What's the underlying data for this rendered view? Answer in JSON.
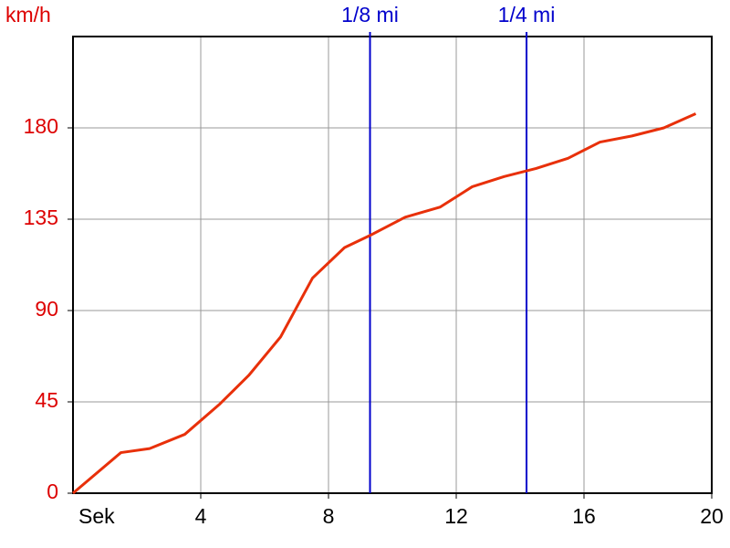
{
  "chart_data": {
    "type": "line",
    "y_label": "km/h",
    "x_label": "Sek",
    "x": [
      0,
      1.5,
      2.4,
      3.5,
      4.6,
      5.5,
      6.5,
      7.5,
      8.5,
      9.3,
      10.4,
      11.5,
      12.5,
      13.5,
      14.5,
      15.5,
      16.5,
      17.5,
      18.5,
      19.5
    ],
    "series": [
      {
        "color": "#e8300a",
        "values": [
          0,
          20,
          22,
          29,
          44,
          58,
          77,
          106,
          121,
          127,
          136,
          141,
          151,
          156,
          160,
          165,
          173,
          176,
          180,
          187
        ]
      }
    ],
    "markers": [
      {
        "label": "1/8 mi",
        "x": 9.3,
        "color": "#0000cc"
      },
      {
        "label": "1/4 mi",
        "x": 14.2,
        "color": "#0000cc"
      }
    ],
    "xlim": [
      0,
      20
    ],
    "ylim": [
      0,
      225
    ],
    "xticks": [
      4,
      8,
      12,
      16,
      20
    ],
    "yticks": [
      0,
      45,
      90,
      135,
      180
    ],
    "grid": true,
    "tick_label_color": "#dd0000"
  }
}
